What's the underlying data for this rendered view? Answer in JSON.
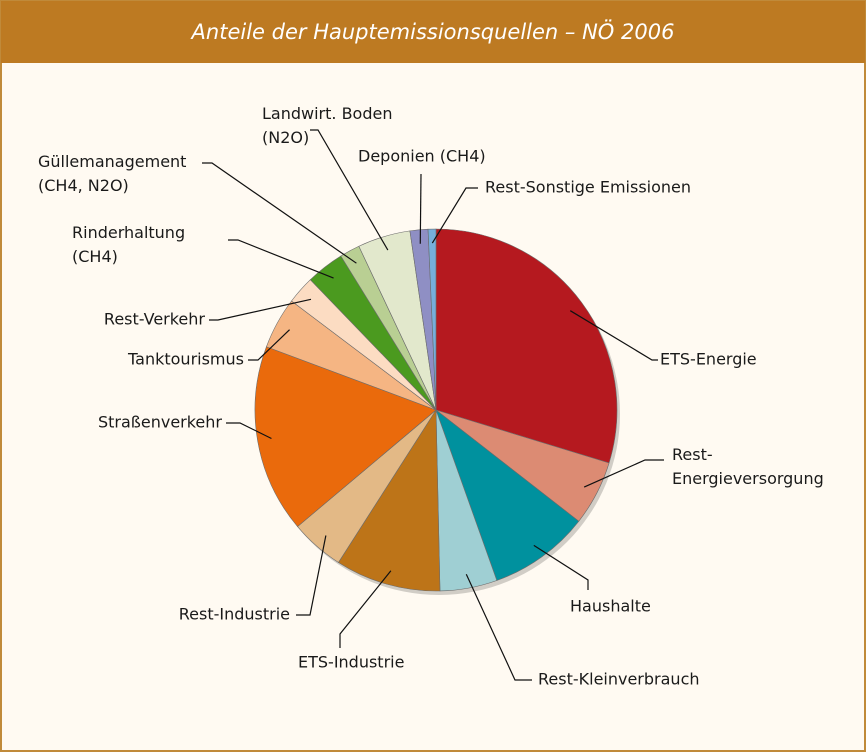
{
  "chart_data": {
    "type": "pie",
    "title": "Anteile der Hauptemissionsquellen – NÖ 2006",
    "categories": [
      "ETS-Energie",
      "Rest-\nEnergieversorgung",
      "Haushalte",
      "Rest-Kleinverbrauch",
      "ETS-Industrie",
      "Rest-Industrie",
      "Straßenverkehr",
      "Tanktourismus",
      "Rest-Verkehr",
      "Rinderhaltung\n(CH4)",
      "Güllemanagement\n(CH4, N2O)",
      "Landwirt. Boden\n(N2O)",
      "Deponien (CH4)",
      "Rest-Sonstige Emissionen"
    ],
    "values": [
      29.7,
      5.8,
      9.0,
      5.1,
      9.4,
      4.8,
      16.8,
      4.6,
      2.5,
      3.4,
      1.8,
      4.7,
      1.6,
      0.7
    ],
    "colors": [
      "#b5191f",
      "#dc8b73",
      "#00919e",
      "#9fcfd3",
      "#bd7418",
      "#e3b986",
      "#ea6a0c",
      "#f5b583",
      "#fcdcc2",
      "#4b9a1f",
      "#b9cf93",
      "#e2e8cc",
      "#8f8fc4",
      "#76aedb"
    ]
  }
}
